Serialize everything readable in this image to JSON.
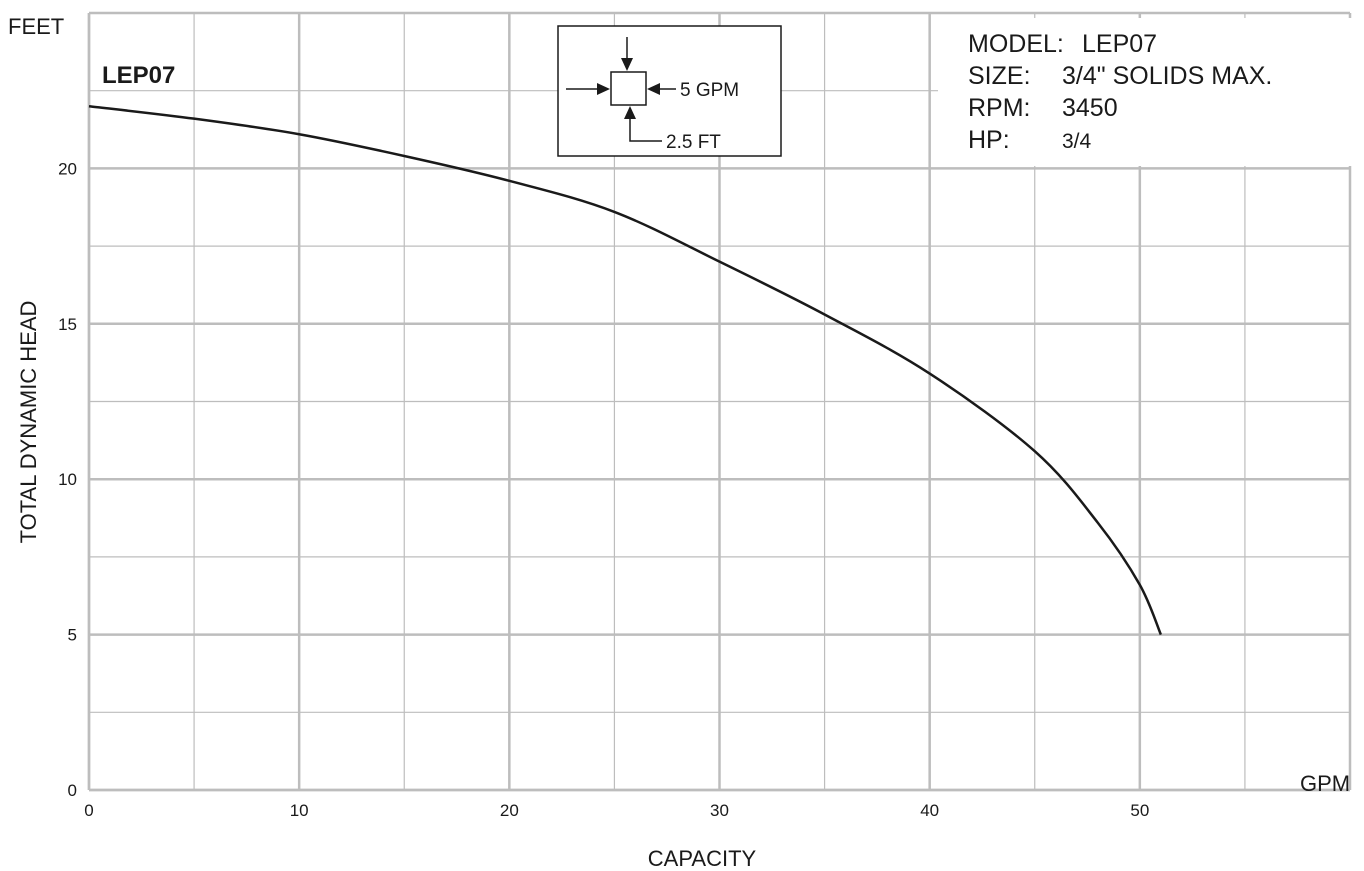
{
  "chart_data": {
    "type": "line",
    "title": "LEP07",
    "xlabel": "CAPACITY",
    "ylabel": "TOTAL DYNAMIC HEAD",
    "x_unit": "GPM",
    "y_unit": "FEET",
    "xlim": [
      0,
      60
    ],
    "ylim": [
      0,
      25
    ],
    "x_ticks": [
      0,
      10,
      20,
      30,
      40,
      50
    ],
    "y_ticks": [
      0,
      5,
      10,
      15,
      20
    ],
    "grid": true,
    "series": [
      {
        "name": "LEP07",
        "x": [
          0,
          5,
          10,
          15,
          20,
          25,
          30,
          35,
          40,
          45,
          48,
          50,
          51
        ],
        "y": [
          22.0,
          21.6,
          21.1,
          20.4,
          19.6,
          18.6,
          17.0,
          15.3,
          13.4,
          10.9,
          8.6,
          6.6,
          5.0
        ]
      }
    ],
    "legend_box": {
      "flow_label": "5 GPM",
      "head_label": "2.5 FT"
    },
    "specs": [
      {
        "label": "MODEL:",
        "value": "LEP07"
      },
      {
        "label": "SIZE:",
        "value": "3/4\" SOLIDS MAX."
      },
      {
        "label": "RPM:",
        "value": "3450"
      },
      {
        "label": "HP:",
        "value": "3/4"
      }
    ],
    "colors": {
      "grid": "#bdbdbd",
      "curve": "#1a1a1a",
      "frame": "#1a1a1a"
    }
  }
}
